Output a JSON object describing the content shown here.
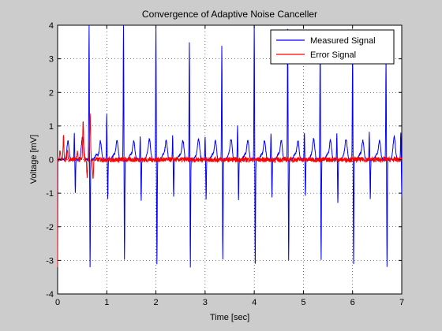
{
  "chart_data": {
    "type": "line",
    "title": "Convergence of Adaptive Noise Canceller",
    "xlabel": "Time [sec]",
    "ylabel": "Voltage [mV]",
    "xlim": [
      0,
      7
    ],
    "ylim": [
      -4,
      4
    ],
    "xticks": [
      "0",
      "1",
      "2",
      "3",
      "4",
      "5",
      "6",
      "7"
    ],
    "yticks": [
      "-4",
      "-3",
      "-2",
      "-1",
      "0",
      "1",
      "2",
      "3",
      "4"
    ],
    "grid": true,
    "legend_position": "top-right",
    "series": [
      {
        "name": "Measured Signal",
        "color": "#0000ff",
        "peaks": [
          {
            "t": 0.34,
            "pos": 0.8,
            "neg": -1.0
          },
          {
            "t": 0.64,
            "pos": 4.0,
            "neg": -3.2
          },
          {
            "t": 1.0,
            "pos": 1.4,
            "neg": -1.2
          },
          {
            "t": 1.34,
            "pos": 4.0,
            "neg": -3.0
          },
          {
            "t": 1.68,
            "pos": 0.7,
            "neg": -1.2
          },
          {
            "t": 2.0,
            "pos": 4.0,
            "neg": -3.1
          },
          {
            "t": 2.34,
            "pos": 0.7,
            "neg": -1.1
          },
          {
            "t": 2.68,
            "pos": 3.5,
            "neg": -3.2
          },
          {
            "t": 3.0,
            "pos": 0.7,
            "neg": -1.2
          },
          {
            "t": 3.34,
            "pos": 3.4,
            "neg": -3.0
          },
          {
            "t": 3.66,
            "pos": 1.0,
            "neg": -1.2
          },
          {
            "t": 4.0,
            "pos": 4.0,
            "neg": -3.1
          },
          {
            "t": 4.34,
            "pos": 0.8,
            "neg": -1.1
          },
          {
            "t": 4.68,
            "pos": 3.9,
            "neg": -3.0
          },
          {
            "t": 5.02,
            "pos": 0.8,
            "neg": -1.1
          },
          {
            "t": 5.34,
            "pos": 3.5,
            "neg": -3.0
          },
          {
            "t": 5.68,
            "pos": 0.8,
            "neg": -1.3
          },
          {
            "t": 6.0,
            "pos": 3.3,
            "neg": -3.1
          },
          {
            "t": 6.34,
            "pos": 0.8,
            "neg": -1.2
          },
          {
            "t": 6.68,
            "pos": 3.0,
            "neg": -3.2
          },
          {
            "t": 6.98,
            "pos": 0.8,
            "neg": -1.1
          }
        ],
        "start_value": -3.2
      },
      {
        "name": "Error Signal",
        "color": "#ff0000",
        "transient": [
          {
            "t": 0.05,
            "v": 0.3
          },
          {
            "t": 0.12,
            "v": 0.7
          },
          {
            "t": 0.2,
            "v": 0.3
          },
          {
            "t": 0.4,
            "v": 0.25
          },
          {
            "t": 0.52,
            "v": 1.2
          },
          {
            "t": 0.6,
            "v": -0.5
          },
          {
            "t": 0.66,
            "v": 1.4
          },
          {
            "t": 0.72,
            "v": -0.6
          }
        ],
        "noise_amplitude": 0.15,
        "start_value": -3.2
      }
    ]
  }
}
